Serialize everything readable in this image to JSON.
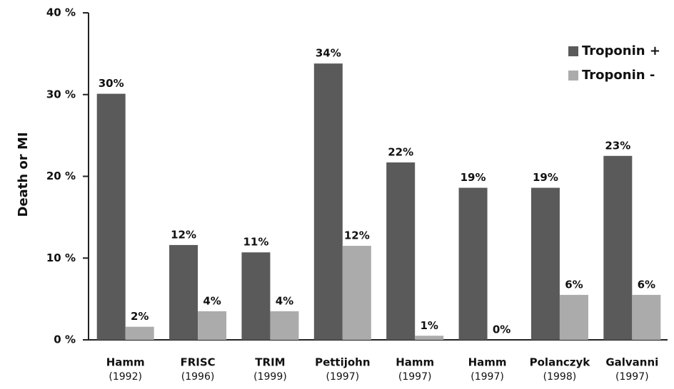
{
  "chart_data": {
    "type": "bar",
    "y_label": "Death or MI",
    "categories": [
      [
        "Hamm",
        "(1992)"
      ],
      [
        "FRISC",
        "(1996)"
      ],
      [
        "TRIM",
        "(1999)"
      ],
      [
        "Pettijohn",
        "(1997)"
      ],
      [
        "Hamm",
        "(1997)"
      ],
      [
        "Hamm",
        "(1997)"
      ],
      [
        "Polanczyk",
        "(1998)"
      ],
      [
        "Galvanni",
        "(1997)"
      ]
    ],
    "series": [
      {
        "name": "Troponin +",
        "color": "#5a5a5a",
        "values": [
          30.1,
          11.6,
          10.7,
          33.8,
          21.7,
          18.6,
          18.6,
          22.5
        ],
        "value_labels": [
          "30%",
          "12%",
          "11%",
          "34%",
          "22%",
          "19%",
          "19%",
          "23%"
        ]
      },
      {
        "name": "Troponin -",
        "color": "#ababab",
        "values": [
          1.6,
          3.5,
          3.5,
          11.5,
          0.5,
          0,
          5.5,
          5.5
        ],
        "value_labels": [
          "2%",
          "4%",
          "4%",
          "12%",
          "1%",
          "0%",
          "6%",
          "6%"
        ]
      }
    ],
    "ylim": [
      0,
      40
    ],
    "yticks": [
      {
        "value": 0,
        "label": "0 %"
      },
      {
        "value": 10,
        "label": "10 %"
      },
      {
        "value": 20,
        "label": "20 %"
      },
      {
        "value": 30,
        "label": "30 %"
      },
      {
        "value": 40,
        "label": "40 %"
      }
    ],
    "grid": false,
    "legend": "top-right"
  }
}
